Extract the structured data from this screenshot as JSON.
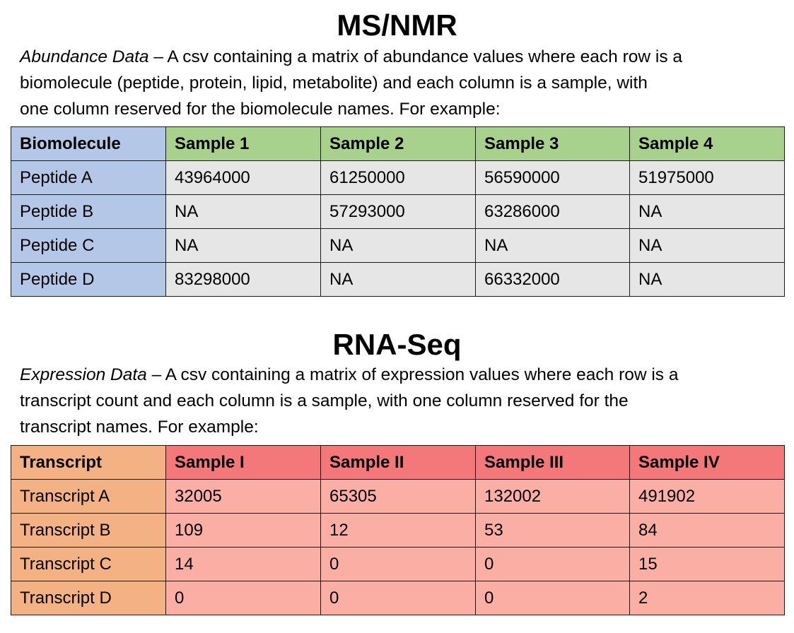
{
  "ms_section": {
    "title": "MS/NMR",
    "desc_lead": "Abundance Data",
    "desc_line1_rest": " – A csv containing a matrix of abundance values where each row is a",
    "desc_line2": "biomolecule (peptide, protein, lipid, metabolite) and each column is a sample, with",
    "desc_line3": "one column reserved for the biomolecule names. For example:",
    "table": {
      "headers": [
        "Biomolecule",
        "Sample 1",
        "Sample 2",
        "Sample 3",
        "Sample 4"
      ],
      "rows": [
        [
          "Peptide A",
          "43964000",
          "61250000",
          "56590000",
          "51975000"
        ],
        [
          "Peptide B",
          "NA",
          "57293000",
          "63286000",
          "NA"
        ],
        [
          "Peptide C",
          "NA",
          "NA",
          "NA",
          "NA"
        ],
        [
          "Peptide D",
          "83298000",
          "NA",
          "66332000",
          "NA"
        ]
      ]
    }
  },
  "rna_section": {
    "title": "RNA-Seq",
    "desc_lead": "Expression Data",
    "desc_line1_rest": " – A csv containing a matrix of expression values where each row is a",
    "desc_line2": "transcript count and each column is a sample, with one column reserved for the",
    "desc_line3": "transcript names. For example:",
    "table": {
      "headers": [
        "Transcript",
        "Sample I",
        "Sample II",
        "Sample III",
        "Sample IV"
      ],
      "rows": [
        [
          "Transcript A",
          "32005",
          "65305",
          "132002",
          "491902"
        ],
        [
          "Transcript B",
          "109",
          "12",
          "53",
          "84"
        ],
        [
          "Transcript C",
          "14",
          "0",
          "0",
          "15"
        ],
        [
          "Transcript D",
          "0",
          "0",
          "0",
          "2"
        ]
      ]
    }
  },
  "colors": {
    "ms_name_column": "#b4c7e7",
    "ms_header_row": "#a9d18e",
    "ms_value_cells": "#e7e6e6",
    "rna_name_column": "#f4b183",
    "rna_header_row": "#f47779",
    "rna_value_cells": "#fbafa4"
  }
}
